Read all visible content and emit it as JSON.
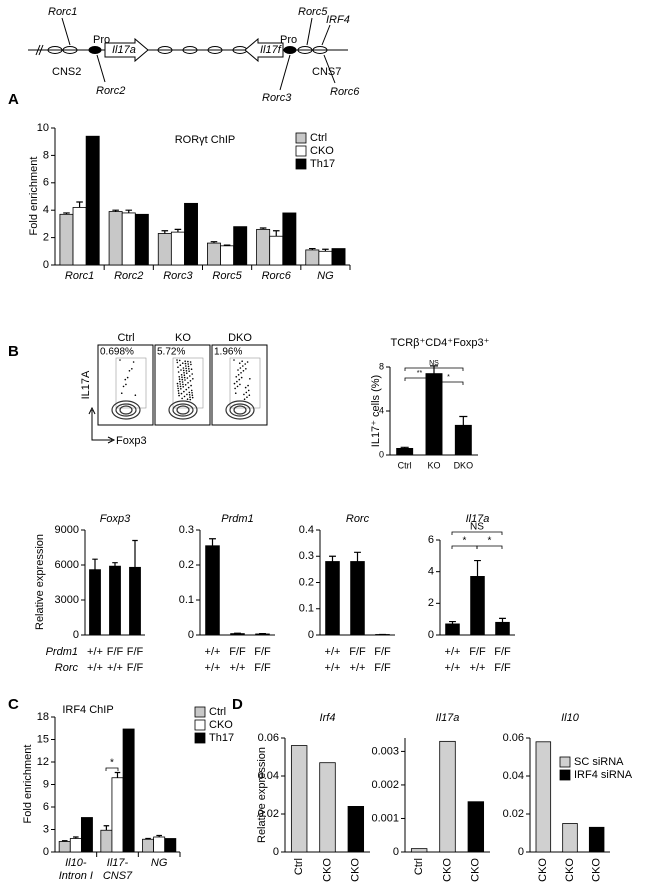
{
  "panel_labels": [
    "A",
    "B",
    "C",
    "D"
  ],
  "diagram": {
    "labels": [
      "Rorc1",
      "CNS2",
      "Pro",
      "Il17a",
      "Rorc2",
      "Il17f",
      "Pro",
      "Rorc3",
      "Rorc5",
      "IRF4",
      "CNS7",
      "Rorc6"
    ]
  },
  "flow": {
    "plots": [
      {
        "name": "Ctrl",
        "gate": "0.698%"
      },
      {
        "name": "KO",
        "gate": "5.72%"
      },
      {
        "name": "DKO",
        "gate": "1.96%"
      }
    ],
    "y_label": "IL17A",
    "x_label": "Foxp3"
  },
  "genotypes": [
    {
      "name": "Prdm1",
      "values": [
        "+/+",
        "F/F",
        "F/F"
      ]
    },
    {
      "name": "Rorc",
      "values": [
        "+/+",
        "+/+",
        "F/F"
      ]
    }
  ],
  "chart_data": [
    {
      "type": "bar",
      "title": "RORγt ChIP",
      "y_label": "Fold enrichment",
      "categories": [
        "Rorc1",
        "Rorc2",
        "Rorc3",
        "Rorc5",
        "Rorc6",
        "NG"
      ],
      "series": [
        {
          "name": "Ctrl",
          "color": "#c8c8c8",
          "values": [
            3.7,
            3.9,
            2.3,
            1.6,
            2.6,
            1.1
          ],
          "errors": [
            0.1,
            0.1,
            0.2,
            0.1,
            0.1,
            0.1
          ]
        },
        {
          "name": "CKO",
          "color": "#ffffff",
          "values": [
            4.2,
            3.8,
            2.4,
            1.4,
            2.1,
            1.0
          ],
          "errors": [
            0.4,
            0.2,
            0.2,
            0.05,
            0.4,
            0.15
          ]
        },
        {
          "name": "Th17",
          "color": "#000000",
          "values": [
            9.4,
            3.7,
            4.5,
            2.8,
            3.8,
            1.2
          ]
        }
      ],
      "ylim": [
        0,
        10
      ],
      "yticks": [
        0,
        2,
        4,
        6,
        8,
        10
      ]
    },
    {
      "type": "bar",
      "title": "TCRβ⁺CD4⁺Foxp3⁺",
      "y_label": "IL17⁺ cells (%)",
      "categories": [
        "Ctrl",
        "KO",
        "DKO"
      ],
      "values": [
        0.6,
        7.4,
        2.7
      ],
      "errors": [
        0.1,
        0.7,
        0.8
      ],
      "color": "#000000",
      "ylim": [
        0,
        8
      ],
      "yticks": [
        0,
        4,
        8
      ],
      "annotations": [
        "NS",
        "**",
        "*"
      ]
    },
    {
      "type": "bar",
      "title": "Foxp3",
      "y_label": "Relative expression",
      "values": [
        5600,
        5900,
        5800
      ],
      "errors": [
        900,
        300,
        2300
      ],
      "color": "#000000",
      "ylim": [
        0,
        9000
      ],
      "yticks": [
        0,
        3000,
        6000,
        9000
      ]
    },
    {
      "type": "bar",
      "title": "Prdm1",
      "values": [
        0.255,
        0.004,
        0.003
      ],
      "errors": [
        0.02,
        0.001,
        0.001
      ],
      "color": "#000000",
      "ylim": [
        0,
        0.3
      ],
      "yticks": [
        0,
        0.1,
        0.2,
        0.3
      ]
    },
    {
      "type": "bar",
      "title": "Rorc",
      "values": [
        0.28,
        0.28,
        0.002
      ],
      "errors": [
        0.02,
        0.035,
        0
      ],
      "color": "#000000",
      "ylim": [
        0,
        0.4
      ],
      "yticks": [
        0,
        0.1,
        0.2,
        0.3,
        0.4
      ]
    },
    {
      "type": "bar",
      "title": "Il17a",
      "values": [
        0.7,
        3.7,
        0.8
      ],
      "errors": [
        0.15,
        1.0,
        0.25
      ],
      "color": "#000000",
      "ylim": [
        0,
        6
      ],
      "yticks": [
        0,
        2,
        4,
        6
      ],
      "annotations": [
        "NS",
        "*",
        "*"
      ]
    },
    {
      "type": "bar",
      "title": "IRF4 ChIP",
      "y_label": "Fold enrichment",
      "categories": [
        "Il10-\nIntron I",
        "Il17-\nCNS7",
        "NG"
      ],
      "series": [
        {
          "name": "Ctrl",
          "color": "#c8c8c8",
          "values": [
            1.4,
            2.9,
            1.7
          ],
          "errors": [
            0.1,
            0.6,
            0.1
          ]
        },
        {
          "name": "CKO",
          "color": "#ffffff",
          "values": [
            1.8,
            9.9,
            2.0
          ],
          "errors": [
            0.2,
            0.7,
            0.2
          ]
        },
        {
          "name": "Th17",
          "color": "#000000",
          "values": [
            4.6,
            16.4,
            1.8
          ]
        }
      ],
      "ylim": [
        0,
        18
      ],
      "yticks": [
        0,
        3,
        6,
        9,
        12,
        15,
        18
      ],
      "annotations": [
        "*"
      ]
    },
    {
      "type": "bar",
      "title": "Irf4",
      "y_label": "Relative expression",
      "categories": [
        "Ctrl",
        "CKO",
        "CKO"
      ],
      "values": [
        0.056,
        0.047,
        0.024
      ],
      "colors": [
        "#d0d0d0",
        "#d0d0d0",
        "#000000"
      ],
      "ylim": [
        0,
        0.06
      ],
      "yticks": [
        0,
        0.02,
        0.04,
        0.06
      ]
    },
    {
      "type": "bar",
      "title": "Il17a",
      "categories": [
        "Ctrl",
        "CKO",
        "CKO"
      ],
      "values": [
        0.0001,
        0.0033,
        0.0015
      ],
      "colors": [
        "#d0d0d0",
        "#d0d0d0",
        "#000000"
      ],
      "ylim": [
        0,
        0.0034
      ],
      "yticks": [
        0,
        0.001,
        0.002,
        0.003
      ]
    },
    {
      "type": "bar",
      "title": "Il10",
      "categories": [
        "CKO",
        "CKO",
        "CKO"
      ],
      "values": [
        0.058,
        0.015,
        0.013
      ],
      "colors": [
        "#d0d0d0",
        "#d0d0d0",
        "#000000"
      ],
      "ylim": [
        0,
        0.06
      ],
      "yticks": [
        0,
        0.02,
        0.04,
        0.06
      ],
      "legend": [
        {
          "name": "SC siRNA",
          "color": "#d0d0d0"
        },
        {
          "name": "IRF4 siRNA",
          "color": "#000000"
        }
      ]
    }
  ]
}
